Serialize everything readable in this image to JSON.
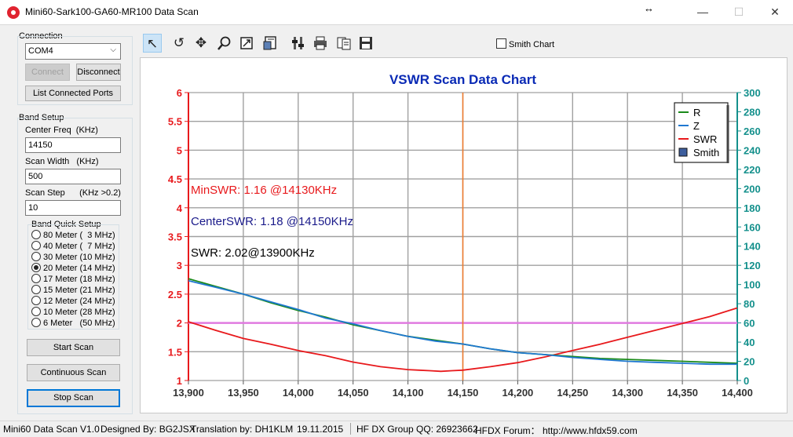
{
  "window": {
    "title": "Mini60-Sark100-GA60-MR100 Data Scan",
    "minimize": "—",
    "maximize": "☐",
    "close": "✕",
    "resize_glyph": "↔"
  },
  "connection": {
    "group_label": "Connection",
    "port_value": "COM4",
    "connect_label": "Connect",
    "disconnect_label": "Disconnect",
    "list_ports_label": "List Connected Ports"
  },
  "band_setup": {
    "group_label": "Band Setup",
    "center_freq_label": "Center Freq  (KHz)",
    "center_freq_value": "14150",
    "scan_width_label": "Scan Width   (KHz)",
    "scan_width_value": "500",
    "scan_step_label": "Scan Step      (KHz >0.2)",
    "scan_step_value": "10",
    "quick_setup_label": "Band Quick Setup",
    "bands": [
      {
        "label": "80 Meter (  3 MHz)",
        "selected": false
      },
      {
        "label": "40 Meter (  7 MHz)",
        "selected": false
      },
      {
        "label": "30 Meter (10 MHz)",
        "selected": false
      },
      {
        "label": "20 Meter (14 MHz)",
        "selected": true
      },
      {
        "label": "17 Meter (18 MHz)",
        "selected": false
      },
      {
        "label": "15 Meter (21 MHz)",
        "selected": false
      },
      {
        "label": "12 Meter (24 MHz)",
        "selected": false
      },
      {
        "label": "10 Meter (28 MHz)",
        "selected": false
      },
      {
        "label": "6 Meter   (50 MHz)",
        "selected": false
      }
    ]
  },
  "actions": {
    "start_scan": "Start Scan",
    "continuous_scan": "Continuous Scan",
    "stop_scan": "Stop Scan"
  },
  "toolbar": {
    "icons": [
      "pointer-icon",
      "undo-icon",
      "pan-icon",
      "zoom-icon",
      "export-icon",
      "data-table-icon",
      "settings-icon",
      "print-icon",
      "copy-icon",
      "save-icon"
    ],
    "smith_chart_label": "Smith Chart",
    "smith_chart_checked": false
  },
  "chart_data": {
    "type": "line",
    "title": "VSWR Scan Data Chart",
    "xlim": [
      13900,
      14400
    ],
    "x_ticks": [
      "13,900",
      "13,950",
      "14,000",
      "14,050",
      "14,100",
      "14,150",
      "14,200",
      "14,250",
      "14,300",
      "14,350",
      "14,400"
    ],
    "y_left_lim": [
      1,
      6
    ],
    "y_left_ticks": [
      "1",
      "1.5",
      "2",
      "2.5",
      "3",
      "3.5",
      "4",
      "4.5",
      "5",
      "5.5",
      "6"
    ],
    "y_right_lim": [
      0,
      300
    ],
    "y_right_ticks": [
      "0",
      "20",
      "40",
      "60",
      "80",
      "100",
      "120",
      "140",
      "160",
      "180",
      "200",
      "220",
      "240",
      "260",
      "280",
      "300"
    ],
    "colors": {
      "R": "#1a8a1a",
      "Z": "#1f78d1",
      "SWR": "#e8191c",
      "ref_line": "#e07ae0",
      "center_marker": "#f07a2a",
      "left_axis": "#e8191c",
      "right_axis": "#14908c",
      "title": "#0a2ab5"
    },
    "grid": true,
    "center_marker_x": 14150,
    "ref_line_swr": 2,
    "legend_position": "top-right",
    "legend": [
      {
        "name": "R",
        "style": "line"
      },
      {
        "name": "Z",
        "style": "line"
      },
      {
        "name": "SWR",
        "style": "line"
      },
      {
        "name": "Smith",
        "style": "box"
      }
    ],
    "annotations": {
      "min_swr": "MinSWR: 1.16 @14130KHz",
      "center_swr": "CenterSWR: 1.18 @14150KHz",
      "swr": "SWR: 2.02@13900KHz"
    },
    "series": [
      {
        "name": "SWR",
        "axis": "left",
        "x": [
          13900,
          13925,
          13950,
          13975,
          14000,
          14025,
          14050,
          14075,
          14100,
          14110,
          14120,
          14130,
          14140,
          14150,
          14175,
          14200,
          14225,
          14250,
          14275,
          14300,
          14325,
          14350,
          14375,
          14400
        ],
        "y": [
          2.02,
          1.87,
          1.73,
          1.63,
          1.52,
          1.43,
          1.32,
          1.24,
          1.19,
          1.18,
          1.17,
          1.16,
          1.17,
          1.18,
          1.24,
          1.31,
          1.41,
          1.52,
          1.63,
          1.75,
          1.87,
          1.99,
          2.11,
          2.26
        ]
      },
      {
        "name": "R",
        "axis": "right",
        "x": [
          13900,
          13925,
          13950,
          13975,
          14000,
          14025,
          14050,
          14075,
          14100,
          14125,
          14150,
          14175,
          14200,
          14225,
          14250,
          14275,
          14300,
          14325,
          14350,
          14375,
          14400
        ],
        "y": [
          106,
          98,
          90,
          81,
          73,
          66,
          58,
          52,
          46,
          42,
          38,
          33,
          29,
          27,
          25,
          23,
          22,
          21,
          20,
          19,
          18
        ]
      },
      {
        "name": "Z",
        "axis": "right",
        "x": [
          13900,
          13925,
          13950,
          13975,
          14000,
          14025,
          14050,
          14075,
          14100,
          14125,
          14150,
          14175,
          14200,
          14225,
          14250,
          14275,
          14300,
          14325,
          14350,
          14375,
          14400
        ],
        "y": [
          104,
          97,
          90,
          82,
          74,
          65,
          59,
          52,
          46,
          41,
          38,
          33,
          29,
          27,
          24,
          22,
          20,
          19,
          18,
          17,
          17
        ]
      }
    ]
  },
  "status": {
    "version": "Mini60 Data Scan V1.0",
    "designer": "Designed By: BG2JSX",
    "translation": "Translation by: DH1KLM",
    "date": "19.11.2015",
    "group": "HF DX Group QQ: 26923662",
    "forum": "HFDX Forum：  http://www.hfdx59.com"
  }
}
